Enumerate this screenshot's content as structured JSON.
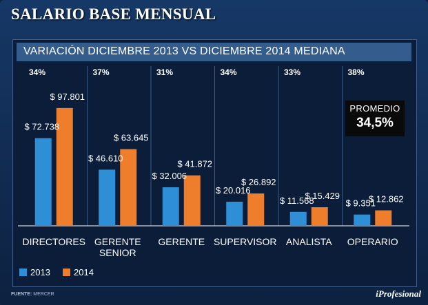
{
  "chart_data": {
    "type": "bar",
    "title": "SALARIO BASE MENSUAL",
    "subtitle": "VARIACIÓN DICIEMBRE 2013 VS DICIEMBRE 2014 MEDIANA",
    "categories": [
      [
        "DIRECTORES"
      ],
      [
        "GERENTE",
        "SENIOR"
      ],
      [
        "GERENTE"
      ],
      [
        "SUPERVISOR"
      ],
      [
        "ANALISTA"
      ],
      [
        "OPERARIO"
      ]
    ],
    "variations": [
      "34%",
      "37%",
      "31%",
      "34%",
      "33%",
      "38%"
    ],
    "series": [
      {
        "name": "2013",
        "color": "#2e8fd6",
        "values": [
          72738,
          46610,
          32006,
          20016,
          11568,
          9351
        ],
        "labels": [
          "$ 72.738",
          "$ 46.610",
          "$ 32.006",
          "$ 20.016",
          "$ 11.568",
          "$ 9.351"
        ]
      },
      {
        "name": "2014",
        "color": "#ee7d2c",
        "values": [
          97801,
          63645,
          41872,
          26892,
          15429,
          12862
        ],
        "labels": [
          "$ 97.801",
          "$ 63.645",
          "$ 41.872",
          "$ 26.892",
          "$ 15.429",
          "$ 12.862"
        ]
      }
    ],
    "ylim": [
      0,
      100000
    ],
    "average": {
      "label": "PROMEDIO",
      "value": "34,5%"
    },
    "legend_position": "bottom-left"
  },
  "footer": {
    "source_label": "FUENTE:",
    "source_value": "MERCER",
    "brand": "iProfesional"
  }
}
